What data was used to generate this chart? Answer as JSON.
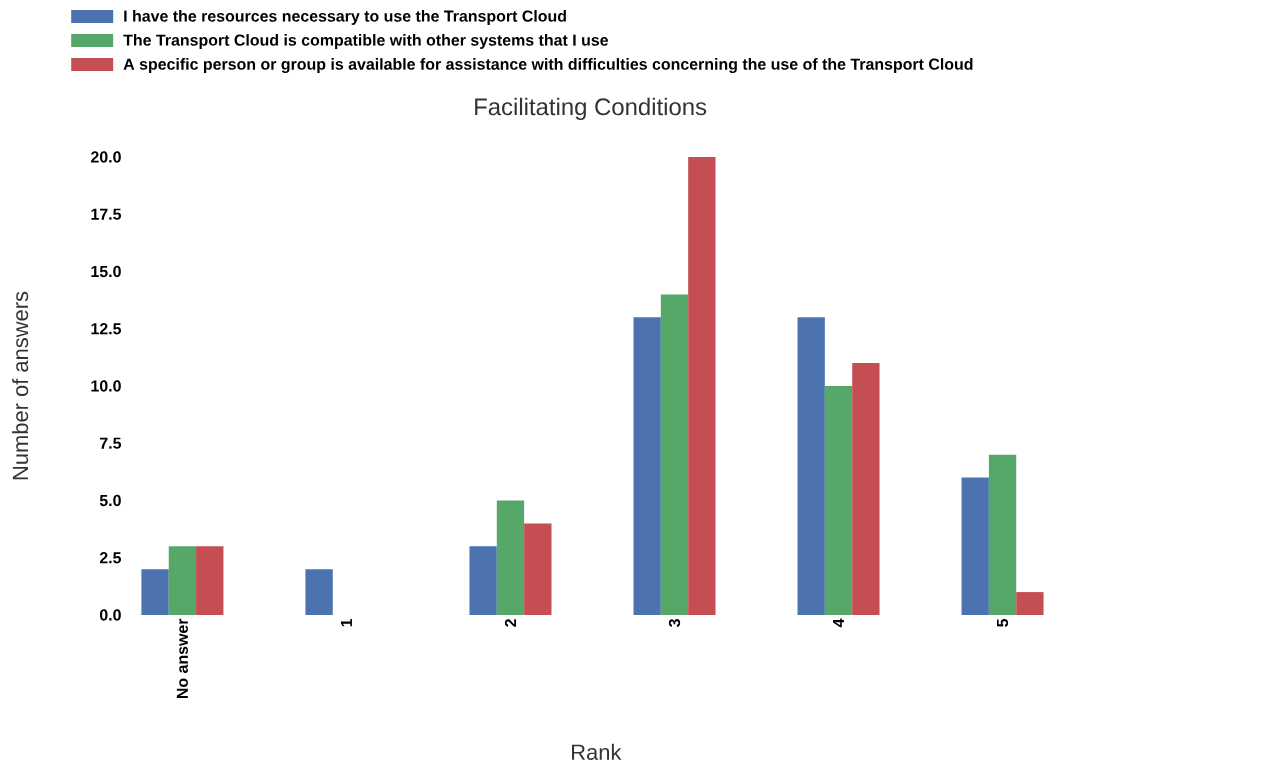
{
  "chart_data": {
    "type": "bar",
    "title": "Facilitating Conditions",
    "xlabel": "Rank",
    "ylabel": "Number of answers",
    "categories": [
      "No answer",
      "1",
      "2",
      "3",
      "4",
      "5"
    ],
    "series": [
      {
        "name": "I have the resources necessary to use the Transport Cloud",
        "color": "#4c72b0",
        "values": [
          2,
          2,
          3,
          13,
          13,
          6
        ]
      },
      {
        "name": "The Transport Cloud is compatible with other systems that I use",
        "color": "#55a868",
        "values": [
          3,
          0,
          5,
          14,
          10,
          7
        ]
      },
      {
        "name": "A specific person or group is available for assistance with difficulties concerning the use of the Transport Cloud",
        "color": "#c44e52",
        "values": [
          3,
          0,
          4,
          20,
          11,
          1
        ]
      }
    ],
    "ylim": [
      0,
      20
    ],
    "yticks": [
      {
        "value": 0,
        "label": "0.0"
      },
      {
        "value": 2.5,
        "label": "2.5"
      },
      {
        "value": 5,
        "label": "5.0"
      },
      {
        "value": 7.5,
        "label": "7.5"
      },
      {
        "value": 10,
        "label": "10.0"
      },
      {
        "value": 12.5,
        "label": "12.5"
      },
      {
        "value": 15,
        "label": "15.0"
      },
      {
        "value": 17.5,
        "label": "17.5"
      },
      {
        "value": 20,
        "label": "20.0"
      }
    ],
    "grid": false,
    "legend": "top left"
  }
}
